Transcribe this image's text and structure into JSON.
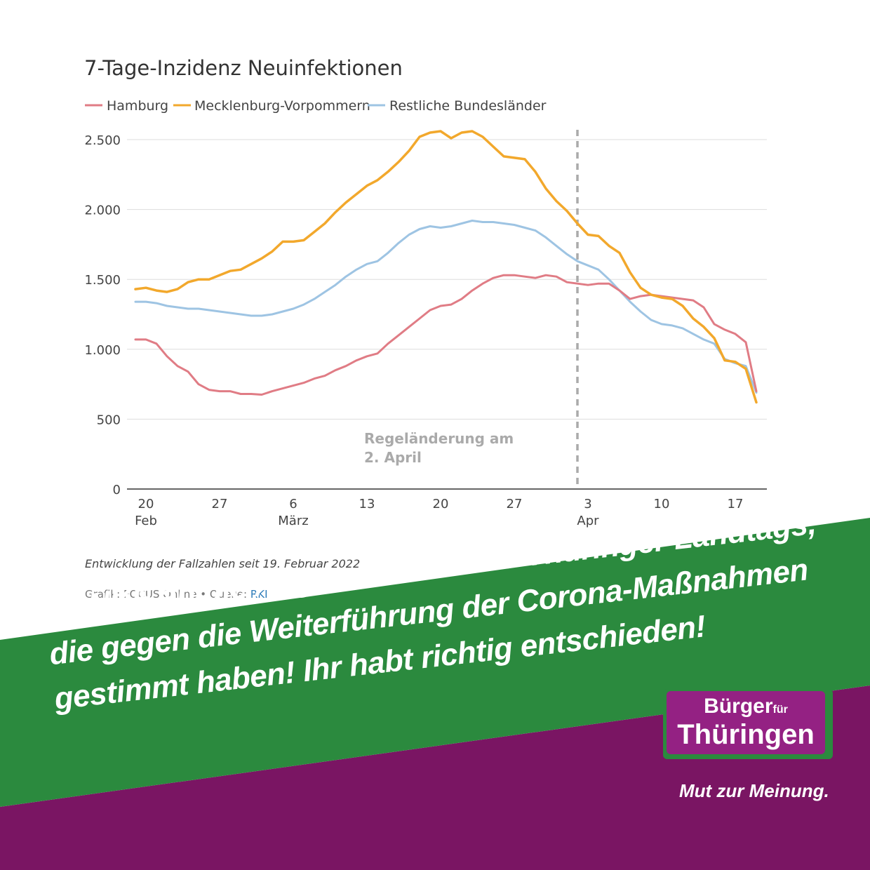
{
  "colors": {
    "hamburg": "#e07c85",
    "mv": "#f2a82c",
    "rest": "#9ec4e3",
    "green": "#2b8a3e",
    "purple": "#7a1563",
    "grid": "#dddddd",
    "axis": "#333333",
    "annotation": "#aaaaaa"
  },
  "chart_data": {
    "type": "line",
    "title": "7-Tage-Inzidenz Neuinfektionen",
    "x_start": "2022-02-19",
    "x_end": "2022-04-19",
    "ylim": [
      0,
      2500
    ],
    "yticks": [
      {
        "value": 0,
        "label": "0"
      },
      {
        "value": 500,
        "label": "500"
      },
      {
        "value": 1000,
        "label": "1.000"
      },
      {
        "value": 1500,
        "label": "1.500"
      },
      {
        "value": 2000,
        "label": "2.000"
      },
      {
        "value": 2500,
        "label": "2.500"
      }
    ],
    "xticks": [
      {
        "date": "2022-02-20",
        "day": "20",
        "month": "Feb"
      },
      {
        "date": "2022-02-27",
        "day": "27",
        "month": ""
      },
      {
        "date": "2022-03-06",
        "day": "6",
        "month": "März"
      },
      {
        "date": "2022-03-13",
        "day": "13",
        "month": ""
      },
      {
        "date": "2022-03-20",
        "day": "20",
        "month": ""
      },
      {
        "date": "2022-03-27",
        "day": "27",
        "month": ""
      },
      {
        "date": "2022-04-03",
        "day": "3",
        "month": "Apr"
      },
      {
        "date": "2022-04-10",
        "day": "10",
        "month": ""
      },
      {
        "date": "2022-04-17",
        "day": "17",
        "month": ""
      }
    ],
    "grid": true,
    "legend": "top-left",
    "annotation": {
      "date": "2022-04-02",
      "lines": [
        "Regeländerung am",
        "2. April"
      ]
    },
    "series": [
      {
        "name": "Hamburg",
        "color_key": "hamburg",
        "points": [
          [
            "2022-02-19",
            1070
          ],
          [
            "2022-02-20",
            1070
          ],
          [
            "2022-02-21",
            1040
          ],
          [
            "2022-02-22",
            950
          ],
          [
            "2022-02-23",
            880
          ],
          [
            "2022-02-24",
            840
          ],
          [
            "2022-02-25",
            750
          ],
          [
            "2022-02-26",
            710
          ],
          [
            "2022-02-27",
            700
          ],
          [
            "2022-02-28",
            700
          ],
          [
            "2022-03-01",
            680
          ],
          [
            "2022-03-02",
            680
          ],
          [
            "2022-03-03",
            675
          ],
          [
            "2022-03-04",
            700
          ],
          [
            "2022-03-05",
            720
          ],
          [
            "2022-03-06",
            740
          ],
          [
            "2022-03-07",
            760
          ],
          [
            "2022-03-08",
            790
          ],
          [
            "2022-03-09",
            810
          ],
          [
            "2022-03-10",
            850
          ],
          [
            "2022-03-11",
            880
          ],
          [
            "2022-03-12",
            920
          ],
          [
            "2022-03-13",
            950
          ],
          [
            "2022-03-14",
            970
          ],
          [
            "2022-03-15",
            1040
          ],
          [
            "2022-03-16",
            1100
          ],
          [
            "2022-03-17",
            1160
          ],
          [
            "2022-03-18",
            1220
          ],
          [
            "2022-03-19",
            1280
          ],
          [
            "2022-03-20",
            1310
          ],
          [
            "2022-03-21",
            1320
          ],
          [
            "2022-03-22",
            1360
          ],
          [
            "2022-03-23",
            1420
          ],
          [
            "2022-03-24",
            1470
          ],
          [
            "2022-03-25",
            1510
          ],
          [
            "2022-03-26",
            1530
          ],
          [
            "2022-03-27",
            1530
          ],
          [
            "2022-03-28",
            1520
          ],
          [
            "2022-03-29",
            1510
          ],
          [
            "2022-03-30",
            1530
          ],
          [
            "2022-03-31",
            1520
          ],
          [
            "2022-04-01",
            1480
          ],
          [
            "2022-04-02",
            1470
          ],
          [
            "2022-04-03",
            1460
          ],
          [
            "2022-04-04",
            1470
          ],
          [
            "2022-04-05",
            1470
          ],
          [
            "2022-04-06",
            1420
          ],
          [
            "2022-04-07",
            1360
          ],
          [
            "2022-04-08",
            1380
          ],
          [
            "2022-04-09",
            1390
          ],
          [
            "2022-04-10",
            1380
          ],
          [
            "2022-04-11",
            1370
          ],
          [
            "2022-04-12",
            1360
          ],
          [
            "2022-04-13",
            1350
          ],
          [
            "2022-04-14",
            1300
          ],
          [
            "2022-04-15",
            1180
          ],
          [
            "2022-04-16",
            1140
          ],
          [
            "2022-04-17",
            1110
          ],
          [
            "2022-04-18",
            1050
          ],
          [
            "2022-04-19",
            700
          ]
        ]
      },
      {
        "name": "Mecklenburg-Vorpommern",
        "color_key": "mv",
        "points": [
          [
            "2022-02-19",
            1430
          ],
          [
            "2022-02-20",
            1440
          ],
          [
            "2022-02-21",
            1420
          ],
          [
            "2022-02-22",
            1410
          ],
          [
            "2022-02-23",
            1430
          ],
          [
            "2022-02-24",
            1480
          ],
          [
            "2022-02-25",
            1500
          ],
          [
            "2022-02-26",
            1500
          ],
          [
            "2022-02-27",
            1530
          ],
          [
            "2022-02-28",
            1560
          ],
          [
            "2022-03-01",
            1570
          ],
          [
            "2022-03-02",
            1610
          ],
          [
            "2022-03-03",
            1650
          ],
          [
            "2022-03-04",
            1700
          ],
          [
            "2022-03-05",
            1770
          ],
          [
            "2022-03-06",
            1770
          ],
          [
            "2022-03-07",
            1780
          ],
          [
            "2022-03-08",
            1840
          ],
          [
            "2022-03-09",
            1900
          ],
          [
            "2022-03-10",
            1980
          ],
          [
            "2022-03-11",
            2050
          ],
          [
            "2022-03-12",
            2110
          ],
          [
            "2022-03-13",
            2170
          ],
          [
            "2022-03-14",
            2210
          ],
          [
            "2022-03-15",
            2270
          ],
          [
            "2022-03-16",
            2340
          ],
          [
            "2022-03-17",
            2420
          ],
          [
            "2022-03-18",
            2520
          ],
          [
            "2022-03-19",
            2550
          ],
          [
            "2022-03-20",
            2560
          ],
          [
            "2022-03-21",
            2510
          ],
          [
            "2022-03-22",
            2550
          ],
          [
            "2022-03-23",
            2560
          ],
          [
            "2022-03-24",
            2520
          ],
          [
            "2022-03-25",
            2450
          ],
          [
            "2022-03-26",
            2380
          ],
          [
            "2022-03-27",
            2370
          ],
          [
            "2022-03-28",
            2360
          ],
          [
            "2022-03-29",
            2270
          ],
          [
            "2022-03-30",
            2150
          ],
          [
            "2022-03-31",
            2060
          ],
          [
            "2022-04-01",
            1990
          ],
          [
            "2022-04-02",
            1900
          ],
          [
            "2022-04-03",
            1820
          ],
          [
            "2022-04-04",
            1810
          ],
          [
            "2022-04-05",
            1740
          ],
          [
            "2022-04-06",
            1690
          ],
          [
            "2022-04-07",
            1550
          ],
          [
            "2022-04-08",
            1440
          ],
          [
            "2022-04-09",
            1390
          ],
          [
            "2022-04-10",
            1370
          ],
          [
            "2022-04-11",
            1360
          ],
          [
            "2022-04-12",
            1310
          ],
          [
            "2022-04-13",
            1220
          ],
          [
            "2022-04-14",
            1160
          ],
          [
            "2022-04-15",
            1080
          ],
          [
            "2022-04-16",
            920
          ],
          [
            "2022-04-17",
            910
          ],
          [
            "2022-04-18",
            860
          ],
          [
            "2022-04-19",
            620
          ]
        ]
      },
      {
        "name": "Restliche Bundesländer",
        "color_key": "rest",
        "points": [
          [
            "2022-02-19",
            1340
          ],
          [
            "2022-02-20",
            1340
          ],
          [
            "2022-02-21",
            1330
          ],
          [
            "2022-02-22",
            1310
          ],
          [
            "2022-02-23",
            1300
          ],
          [
            "2022-02-24",
            1290
          ],
          [
            "2022-02-25",
            1290
          ],
          [
            "2022-02-26",
            1280
          ],
          [
            "2022-02-27",
            1270
          ],
          [
            "2022-02-28",
            1260
          ],
          [
            "2022-03-01",
            1250
          ],
          [
            "2022-03-02",
            1240
          ],
          [
            "2022-03-03",
            1240
          ],
          [
            "2022-03-04",
            1250
          ],
          [
            "2022-03-05",
            1270
          ],
          [
            "2022-03-06",
            1290
          ],
          [
            "2022-03-07",
            1320
          ],
          [
            "2022-03-08",
            1360
          ],
          [
            "2022-03-09",
            1410
          ],
          [
            "2022-03-10",
            1460
          ],
          [
            "2022-03-11",
            1520
          ],
          [
            "2022-03-12",
            1570
          ],
          [
            "2022-03-13",
            1610
          ],
          [
            "2022-03-14",
            1630
          ],
          [
            "2022-03-15",
            1690
          ],
          [
            "2022-03-16",
            1760
          ],
          [
            "2022-03-17",
            1820
          ],
          [
            "2022-03-18",
            1860
          ],
          [
            "2022-03-19",
            1880
          ],
          [
            "2022-03-20",
            1870
          ],
          [
            "2022-03-21",
            1880
          ],
          [
            "2022-03-22",
            1900
          ],
          [
            "2022-03-23",
            1920
          ],
          [
            "2022-03-24",
            1910
          ],
          [
            "2022-03-25",
            1910
          ],
          [
            "2022-03-26",
            1900
          ],
          [
            "2022-03-27",
            1890
          ],
          [
            "2022-03-28",
            1870
          ],
          [
            "2022-03-29",
            1850
          ],
          [
            "2022-03-30",
            1800
          ],
          [
            "2022-03-31",
            1740
          ],
          [
            "2022-04-01",
            1680
          ],
          [
            "2022-04-02",
            1630
          ],
          [
            "2022-04-03",
            1600
          ],
          [
            "2022-04-04",
            1570
          ],
          [
            "2022-04-05",
            1500
          ],
          [
            "2022-04-06",
            1420
          ],
          [
            "2022-04-07",
            1340
          ],
          [
            "2022-04-08",
            1270
          ],
          [
            "2022-04-09",
            1210
          ],
          [
            "2022-04-10",
            1180
          ],
          [
            "2022-04-11",
            1170
          ],
          [
            "2022-04-12",
            1150
          ],
          [
            "2022-04-13",
            1110
          ],
          [
            "2022-04-14",
            1070
          ],
          [
            "2022-04-15",
            1040
          ],
          [
            "2022-04-16",
            930
          ],
          [
            "2022-04-17",
            900
          ],
          [
            "2022-04-18",
            880
          ],
          [
            "2022-04-19",
            690
          ]
        ]
      }
    ]
  },
  "caption": "Entwicklung der Fallzahlen seit 19. Februar 2022",
  "source": {
    "prefix": "Grafik: FOCUS Online • Quelle: ",
    "link": "RKI"
  },
  "headline": {
    "line1": "DANKE an die Abgeordneten des Thüringer Landtags,",
    "line2": "die gegen die Weiterführung der Corona-Maßnahmen",
    "line3": "gestimmt haben! Ihr habt richtig entschieden!"
  },
  "logo": {
    "word1": "Bürger",
    "word2": "für",
    "word3": "Thüringen"
  },
  "slogan": "Mut zur Meinung."
}
